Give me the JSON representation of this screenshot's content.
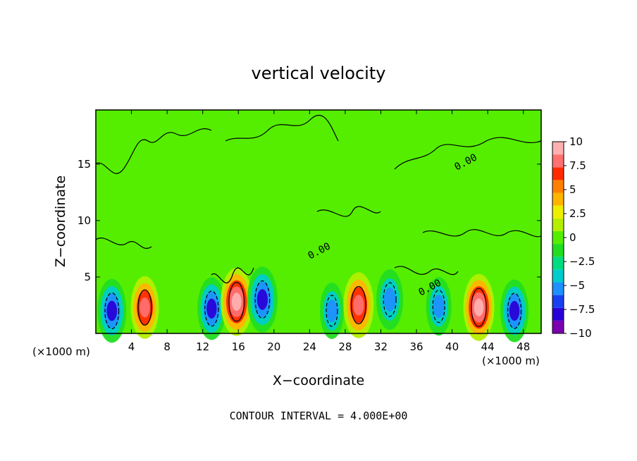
{
  "chart_data": {
    "type": "heatmap",
    "title": "vertical velocity",
    "xlabel": "X−coordinate",
    "ylabel": "Z−coordinate",
    "x_unit": "(×1000 m)",
    "x_unit_right": "(×1000 m)",
    "footer": "CONTOUR INTERVAL = 4.000E+00",
    "contour_label": "0.00",
    "xlim": [
      0,
      50
    ],
    "ylim": [
      0,
      19.8
    ],
    "x_ticks": [
      "4",
      "8",
      "12",
      "16",
      "20",
      "24",
      "28",
      "32",
      "36",
      "40",
      "44",
      "48"
    ],
    "y_ticks": [
      "5",
      "10",
      "15"
    ],
    "colorbar_ticks": [
      "10",
      "7.5",
      "5",
      "2.5",
      "0",
      "−2.5",
      "−5",
      "−7.5",
      "−10"
    ],
    "value_range": [
      -10,
      10
    ],
    "colormap": [
      "#7a00b0",
      "#2a00d8",
      "#1840f0",
      "#1e90ff",
      "#00cccc",
      "#00dd80",
      "#22dd22",
      "#55ee00",
      "#b4ee00",
      "#eeee00",
      "#ffb400",
      "#ff8000",
      "#ff2a00",
      "#ff7070",
      "#ffb0b0"
    ],
    "background_value": 0.3,
    "cells": [
      {
        "x": 1.8,
        "z": 2.0,
        "w": -7.5
      },
      {
        "x": 5.5,
        "z": 2.3,
        "w": 7.0
      },
      {
        "x": 13.0,
        "z": 2.2,
        "w": -7.0
      },
      {
        "x": 15.8,
        "z": 2.8,
        "w": 9.5
      },
      {
        "x": 18.7,
        "z": 3.0,
        "w": -8.5
      },
      {
        "x": 26.5,
        "z": 2.0,
        "w": -4.0
      },
      {
        "x": 29.5,
        "z": 2.5,
        "w": 8.5
      },
      {
        "x": 33.0,
        "z": 3.0,
        "w": -6.0
      },
      {
        "x": 38.5,
        "z": 2.4,
        "w": -5.0
      },
      {
        "x": 43.0,
        "z": 2.3,
        "w": 9.0
      },
      {
        "x": 47.0,
        "z": 2.0,
        "w": -7.0
      }
    ]
  }
}
